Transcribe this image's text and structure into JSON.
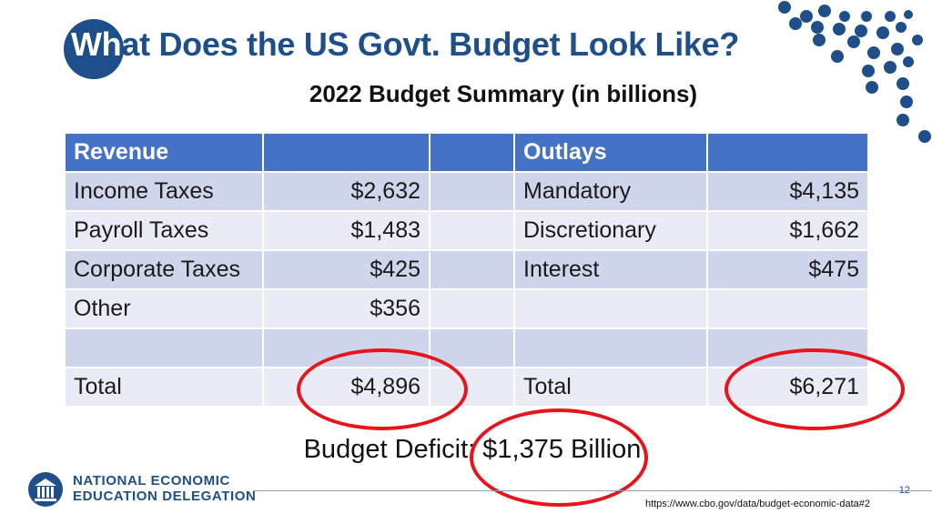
{
  "slide": {
    "title_highlight": "Wh",
    "title_rest": "at Does the US Govt. Budget Look Like?",
    "subtitle": "2022 Budget Summary (in billions)"
  },
  "table": {
    "header": [
      "Revenue",
      "",
      "",
      "Outlays",
      ""
    ],
    "rows": [
      [
        "Income Taxes",
        "$2,632",
        "",
        "Mandatory",
        "$4,135"
      ],
      [
        "Payroll Taxes",
        "$1,483",
        "",
        "Discretionary",
        "$1,662"
      ],
      [
        "Corporate Taxes",
        "$425",
        "",
        "Interest",
        "$475"
      ],
      [
        "Other",
        "$356",
        "",
        "",
        ""
      ],
      [
        "",
        "",
        "",
        "",
        ""
      ],
      [
        "Total",
        "$4,896",
        "",
        "Total",
        "$6,271"
      ]
    ]
  },
  "deficit_text": "Budget Deficit: $1,375 Billion",
  "footer": {
    "org_line1": "NATIONAL ECONOMIC",
    "org_line2": "EDUCATION DELEGATION",
    "page_number": "12",
    "source_url": "https://www.cbo.gov/data/budget-economic-data#2"
  },
  "colors": {
    "title_blue": "#1f4f8b",
    "header_blue": "#4472c4",
    "row_band_dark": "#cfd5ea",
    "row_band_light": "#e9ebf5",
    "highlight_red": "#e8141b"
  }
}
